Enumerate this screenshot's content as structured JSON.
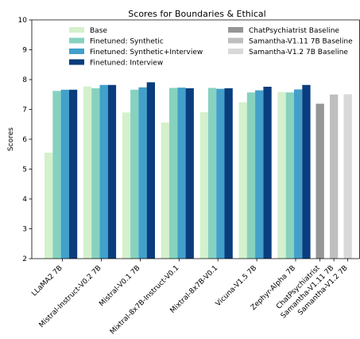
{
  "chart_data": {
    "type": "bar",
    "title": "Scores for Boundaries & Ethical",
    "xlabel": "",
    "ylabel": "Scores",
    "ylim": [
      2,
      10
    ],
    "yticks": [
      2,
      3,
      4,
      5,
      6,
      7,
      8,
      9,
      10
    ],
    "grid": false,
    "legend_location": "top",
    "categories": [
      "LLaMA2 7B",
      "Mistral-Instruct-V0.2 7B",
      "Mistral-V0.1 7B",
      "Mixtral-8x7B-Instruct-V0.1",
      "Mixtral-8x7B-V0.1",
      "Vicuna-V1.5 7B",
      "Zephyr-Alpha 7B"
    ],
    "series": [
      {
        "name": "Base",
        "color": "#d4f0cc",
        "values": [
          5.55,
          7.77,
          6.9,
          6.56,
          6.91,
          7.24,
          7.58
        ]
      },
      {
        "name": "Finetuned: Synthetic",
        "color": "#86d2bf",
        "values": [
          7.62,
          7.71,
          7.66,
          7.72,
          7.72,
          7.57,
          7.57
        ]
      },
      {
        "name": "Finetuned: Synthetic+Interview",
        "color": "#42a0cb",
        "values": [
          7.66,
          7.82,
          7.74,
          7.73,
          7.69,
          7.64,
          7.67
        ]
      },
      {
        "name": "Finetuned: Interview",
        "color": "#0a3d7d",
        "values": [
          7.66,
          7.82,
          7.91,
          7.71,
          7.71,
          7.76,
          7.82
        ]
      }
    ],
    "baselines": [
      {
        "name": "ChatPsychiatrist Baseline",
        "label": "ChatPsychiatrist",
        "color": "#969696",
        "value": 7.19
      },
      {
        "name": "Samantha-V1.11 7B Baseline",
        "label": "Samantha-V1.11 7B",
        "color": "#bfbfbf",
        "value": 7.5
      },
      {
        "name": "Samantha-V1.2 7B Baseline",
        "label": "Samantha-V1.2 7B",
        "color": "#d9d9d9",
        "value": 7.51
      }
    ]
  }
}
